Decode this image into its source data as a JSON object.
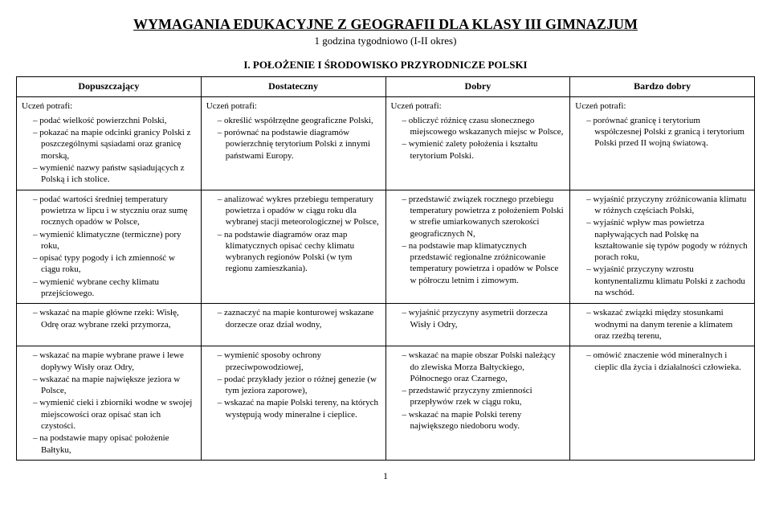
{
  "title": "WYMAGANIA EDUKACYJNE Z GEOGRAFII DLA KLASY III GIMNAZJUM",
  "subtitle": "1 godzina tygodniowo (I-II okres)",
  "section_title": "I. POŁOŻENIE I ŚRODOWISKO PRZYRODNICZE POLSKI",
  "headers": {
    "col1": "Dopuszczający",
    "col2": "Dostateczny",
    "col3": "Dobry",
    "col4": "Bardzo dobry"
  },
  "lead": "Uczeń potrafi:",
  "rows": [
    {
      "c1": [
        "podać wielkość powierzchni Polski,",
        "pokazać na mapie odcinki granicy Polski z poszczególnymi sąsiadami oraz granicę morską,",
        "wymienić nazwy państw sąsiadujących z Polską i ich stolice."
      ],
      "c2": [
        "określić współrzędne geograficzne Polski,",
        "porównać na podstawie diagramów powierzchnię terytorium Polski z innymi państwami Europy."
      ],
      "c3": [
        "obliczyć różnicę czasu słonecznego miejscowego wskazanych miejsc w Polsce,",
        "wymienić zalety położenia i kształtu terytorium Polski."
      ],
      "c4": [
        "porównać granicę i terytorium współczesnej Polski z granicą i terytorium Polski przed II wojną światową."
      ]
    },
    {
      "c1": [
        "podać wartości średniej temperatury powietrza w lipcu i w styczniu oraz sumę rocznych opadów w Polsce,",
        "wymienić klimatyczne (termiczne) pory roku,",
        "opisać typy pogody i ich zmienność w ciągu roku,",
        "wymienić wybrane cechy klimatu przejściowego."
      ],
      "c2": [
        "analizować wykres przebiegu temperatury powietrza i opadów w ciągu roku dla wybranej stacji meteorologicznej w Polsce,",
        "na podstawie diagramów oraz map klimatycznych opisać cechy klimatu wybranych regionów Polski (w tym regionu zamieszkania)."
      ],
      "c3": [
        "przedstawić związek rocznego przebiegu temperatury powietrza z położeniem Polski w strefie umiarkowanych szerokości geograficznych N,",
        "na podstawie map klimatycznych przedstawić regionalne zróżnicowanie temperatury powietrza i opadów w Polsce w półroczu letnim i zimowym."
      ],
      "c4": [
        "wyjaśnić przyczyny zróżnicowania klimatu w różnych częściach Polski,",
        "wyjaśnić wpływ mas powietrza napływających nad Polskę na kształtowanie się typów pogody w różnych porach roku,",
        "wyjaśnić przyczyny wzrostu kontynentalizmu klimatu Polski z zachodu na wschód."
      ]
    },
    {
      "c1": [
        "wskazać na mapie główne rzeki: Wisłę, Odrę oraz wybrane rzeki przymorza,"
      ],
      "c2": [
        "zaznaczyć na mapie konturowej wskazane dorzecze oraz dział wodny,"
      ],
      "c3": [
        "wyjaśnić przyczyny asymetrii dorzecza Wisły i Odry,"
      ],
      "c4": [
        "wskazać związki między stosunkami wodnymi na danym terenie a klimatem oraz rzeźbą terenu,"
      ]
    },
    {
      "c1": [
        "wskazać na mapie wybrane prawe i lewe dopływy Wisły oraz Odry,",
        "wskazać na mapie największe jeziora w Polsce,",
        "wymienić cieki i zbiorniki wodne w swojej miejscowości oraz opisać stan ich czystości.",
        "na podstawie mapy opisać położenie Bałtyku,"
      ],
      "c2": [
        "wymienić sposoby ochrony przeciwpowodziowej,",
        "podać przykłady jezior o różnej genezie (w tym jeziora zaporowe),",
        "wskazać na mapie Polski tereny, na których występują wody mineralne i cieplice."
      ],
      "c3": [
        "wskazać na mapie obszar Polski należący do zlewiska Morza Bałtyckiego, Północnego oraz Czarnego,",
        "przedstawić przyczyny zmienności przepływów rzek w ciągu roku,",
        "wskazać na mapie Polski tereny największego niedoboru wody."
      ],
      "c4": [
        "omówić znaczenie wód mineralnych i cieplic dla życia i działalności człowieka."
      ]
    }
  ],
  "page_num": "1"
}
